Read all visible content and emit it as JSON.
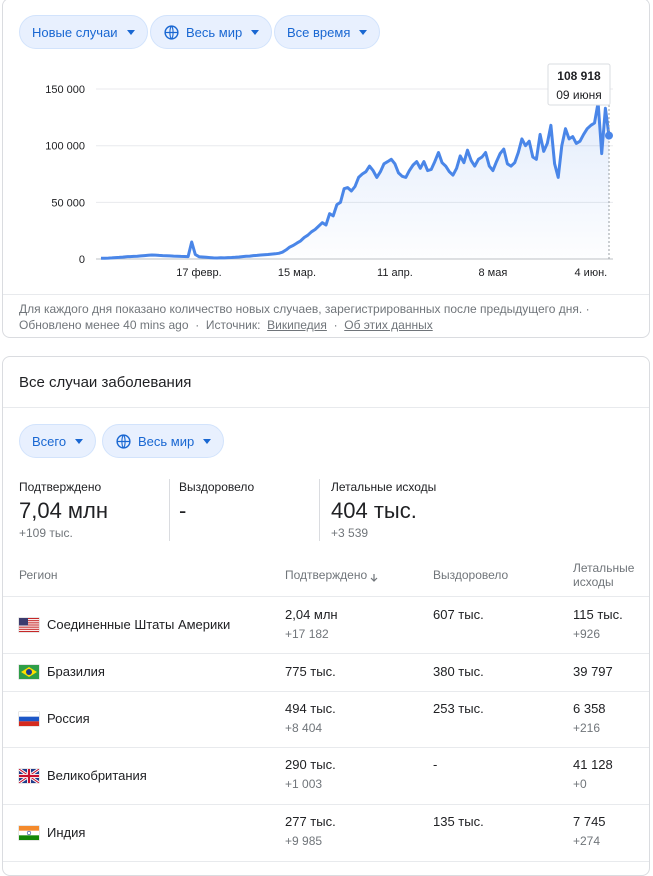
{
  "filters": {
    "metric": "Новые случаи",
    "region": "Весь мир",
    "period": "Все время"
  },
  "chart_data": {
    "type": "line",
    "categories": [
      null,
      null,
      null,
      null,
      null,
      null,
      null,
      null,
      null,
      null,
      null,
      null,
      null,
      null,
      null,
      null,
      null,
      null,
      null,
      null,
      null,
      null,
      null,
      null,
      null,
      null,
      null,
      "17 февр.",
      null,
      null,
      null,
      null,
      null,
      null,
      null,
      null,
      null,
      null,
      null,
      null,
      null,
      null,
      null,
      null,
      null,
      null,
      null,
      null,
      null,
      null,
      null,
      null,
      null,
      null,
      "15 мар.",
      null,
      null,
      null,
      null,
      null,
      null,
      null,
      null,
      null,
      null,
      null,
      null,
      null,
      null,
      null,
      null,
      null,
      null,
      null,
      null,
      null,
      null,
      null,
      null,
      null,
      null,
      "11 апр.",
      null,
      null,
      null,
      null,
      null,
      null,
      null,
      null,
      null,
      null,
      null,
      null,
      null,
      null,
      null,
      null,
      null,
      null,
      null,
      null,
      null,
      null,
      null,
      null,
      null,
      null,
      "8 мая",
      null,
      null,
      null,
      null,
      null,
      null,
      null,
      null,
      null,
      null,
      null,
      null,
      null,
      null,
      null,
      null,
      null,
      null,
      null,
      null,
      null,
      null,
      null,
      null,
      null,
      null,
      "4 июн.",
      null,
      null,
      null,
      null,
      null
    ],
    "series": [
      {
        "name": "Новые случаи",
        "color": "#4a86e8",
        "values": [
          600,
          700,
          800,
          1000,
          1200,
          1400,
          1700,
          2000,
          2100,
          2300,
          2500,
          2700,
          3000,
          3300,
          3500,
          3400,
          3200,
          3000,
          2900,
          2700,
          2600,
          2500,
          2300,
          2200,
          2100,
          15000,
          4000,
          2000,
          1800,
          1500,
          1200,
          1000,
          900,
          1100,
          1000,
          1200,
          1300,
          1500,
          1800,
          2100,
          2500,
          2600,
          3000,
          3200,
          3500,
          3800,
          4000,
          4300,
          4600,
          5000,
          6000,
          8000,
          10500,
          12000,
          14000,
          16000,
          19000,
          21000,
          24000,
          26000,
          29000,
          32000,
          30000,
          40000,
          38000,
          48000,
          50000,
          62000,
          63000,
          60000,
          64000,
          72000,
          75000,
          77000,
          82000,
          78000,
          72000,
          77000,
          84000,
          86000,
          88000,
          84000,
          76000,
          73000,
          72000,
          78000,
          83000,
          86000,
          80000,
          86000,
          78000,
          79000,
          86000,
          94000,
          85000,
          82000,
          77000,
          74000,
          80000,
          91000,
          85000,
          96000,
          87000,
          82000,
          88000,
          90000,
          94000,
          82000,
          78000,
          86000,
          93000,
          97000,
          84000,
          82000,
          85000,
          94000,
          106000,
          100000,
          104000,
          90000,
          88000,
          110000,
          95000,
          102000,
          118000,
          84000,
          72000,
          100000,
          115000,
          106000,
          108000,
          102000,
          104000,
          110000,
          115000,
          118000,
          120000,
          138000,
          93000,
          133000,
          108918
        ]
      }
    ],
    "ylim": [
      0,
      160000
    ],
    "yticks": [
      0,
      {
        "value": 50000,
        "label": "50 000"
      },
      {
        "value": 100000,
        "label": "100 000"
      },
      {
        "value": 150000,
        "label": "150 000"
      }
    ],
    "grid": true,
    "tooltip": {
      "value_label": "108 918",
      "date": "09 июня"
    }
  },
  "footer": {
    "note": "Для каждого дня показано количество новых случаев, зарегистрированных после предыдущего дня. ·",
    "updated": "Обновлено менее 40 mins ago",
    "sep1": "·",
    "source_label": "Источник:",
    "source_link": "Википедия",
    "sep2": "·",
    "about_link": "Об этих данных"
  },
  "totals": {
    "title": "Все случаи заболевания",
    "filters": {
      "scope": "Всего",
      "region": "Весь мир"
    },
    "stats": [
      {
        "label": "Подтверждено",
        "value": "7,04 млн",
        "change": "+109 тыс."
      },
      {
        "label": "Выздоровело",
        "value": "-"
      },
      {
        "label": "Летальные исходы",
        "value": "404 тыс.",
        "change": "+3 539"
      }
    ]
  },
  "table": {
    "headers": [
      "Регион",
      "Подтверждено",
      "Выздоровело",
      "Летальные исходы"
    ],
    "rows": [
      {
        "region": "Соединенные Штаты Америки",
        "confirmed": "2,04 млн",
        "confirmed_change": "+17 182",
        "recovered": "607 тыс.",
        "deaths": "115 тыс.",
        "deaths_change": "+926"
      },
      {
        "region": "Бразилия",
        "confirmed": "775 тыс.",
        "recovered": "380 тыс.",
        "deaths": "39 797"
      },
      {
        "region": "Россия",
        "confirmed": "494 тыс.",
        "confirmed_change": "+8 404",
        "recovered": "253 тыс.",
        "deaths": "6 358",
        "deaths_change": "+216"
      },
      {
        "region": "Великобритания",
        "confirmed": "290 тыс.",
        "confirmed_change": "+1 003",
        "recovered": "-",
        "deaths": "41 128",
        "deaths_change": "+0"
      },
      {
        "region": "Индия",
        "confirmed": "277 тыс.",
        "confirmed_change": "+9 985",
        "recovered": "135 тыс.",
        "deaths": "7 745",
        "deaths_change": "+274"
      }
    ]
  }
}
